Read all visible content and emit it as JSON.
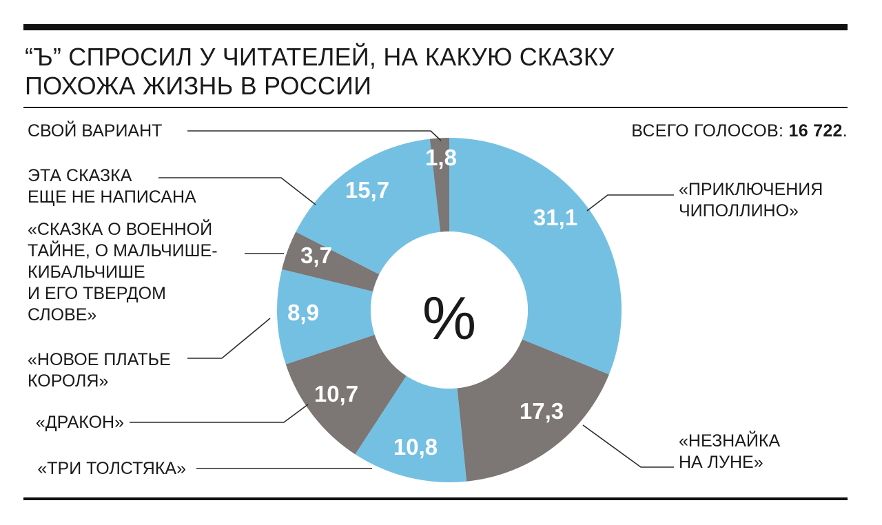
{
  "title": "“Ъ” СПРОСИЛ У ЧИТАТЕЛЕЙ, НА КАКУЮ СКАЗКУ\nПОХОЖА ЖИЗНЬ В РОССИИ",
  "total": {
    "label": "ВСЕГО ГОЛОСОВ:",
    "value": "16 722",
    "suffix": "."
  },
  "center_label": "%",
  "colors": {
    "blue": "#74c0e2",
    "gray": "#7c7674",
    "line": "#2a2a2a"
  },
  "chart_data": {
    "type": "pie",
    "variant": "donut",
    "unit": "%",
    "start": "top, clockwise",
    "slices": [
      {
        "label": "«ПРИКЛЮЧЕНИЯ\nЧИПОЛЛИНО»",
        "value": 31.1,
        "display": "31,1",
        "color": "blue"
      },
      {
        "label": "«НЕЗНАЙКА\nНА ЛУНЕ»",
        "value": 17.3,
        "display": "17,3",
        "color": "gray"
      },
      {
        "label": "«ТРИ ТОЛСТЯКА»",
        "value": 10.8,
        "display": "10,8",
        "color": "blue"
      },
      {
        "label": "«ДРАКОН»",
        "value": 10.7,
        "display": "10,7",
        "color": "gray"
      },
      {
        "label": "«НОВОЕ ПЛАТЬЕ\nКОРОЛЯ»",
        "value": 8.9,
        "display": "8,9",
        "color": "blue"
      },
      {
        "label": "«СКАЗКА О ВОЕННОЙ\nТАЙНЕ, О МАЛЬЧИШЕ-\nКИБАЛЬЧИШЕ\nИ ЕГО ТВЕРДОМ\nСЛОВЕ»",
        "value": 3.7,
        "display": "3,7",
        "color": "gray"
      },
      {
        "label": "ЭТА СКАЗКА\nЕЩЕ НЕ НАПИСАНА",
        "value": 15.7,
        "display": "15,7",
        "color": "blue"
      },
      {
        "label": "СВОЙ ВАРИАНТ",
        "value": 1.8,
        "display": "1,8",
        "color": "gray"
      }
    ]
  }
}
